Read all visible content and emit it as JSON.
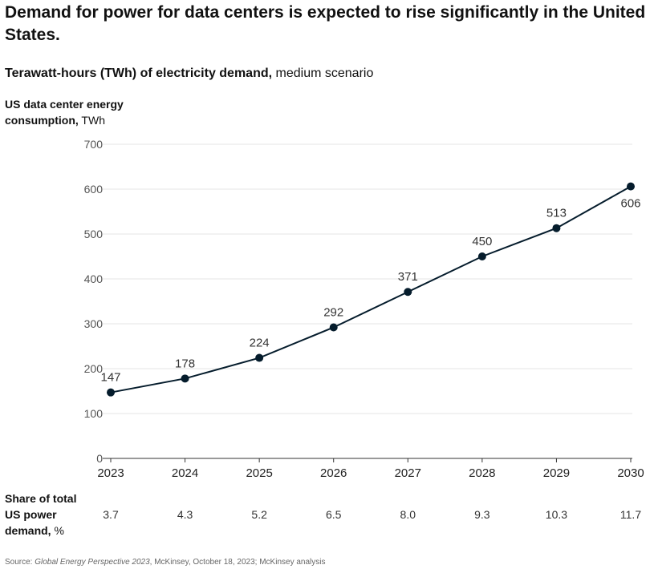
{
  "title": "Demand for power for data centers is expected to rise significantly in the United States.",
  "subtitle": {
    "bold": "Terawatt-hours (TWh) of electricity demand,",
    "normal": "medium scenario"
  },
  "y_axis_label": {
    "bold": "US data center energy consumption,",
    "unit": "TWh"
  },
  "share_row": {
    "label_bold": "Share of total US power demand,",
    "label_unit": "%",
    "values": [
      "3.7",
      "4.3",
      "5.2",
      "6.5",
      "8.0",
      "9.3",
      "10.3",
      "11.7"
    ]
  },
  "source": {
    "prefix": "Source:",
    "italic": "Global Energy Perspective 2023",
    "suffix": ", McKinsey, October 18, 2023; McKinsey analysis"
  },
  "colors": {
    "line": "#051c2c",
    "grid": "#e6e6e6",
    "axis": "#333333",
    "tick_text": "#555555"
  },
  "chart_data": {
    "type": "line",
    "title": "Demand for power for data centers is expected to rise significantly in the United States.",
    "xlabel": "",
    "ylabel": "US data center energy consumption, TWh",
    "ylim": [
      0,
      700
    ],
    "yticks": [
      0,
      100,
      200,
      300,
      400,
      500,
      600,
      700
    ],
    "x": [
      "2023",
      "2024",
      "2025",
      "2026",
      "2027",
      "2028",
      "2029",
      "2030"
    ],
    "series": [
      {
        "name": "US data center energy consumption",
        "values": [
          147,
          178,
          224,
          292,
          371,
          450,
          513,
          606
        ],
        "labels": [
          "147",
          "178",
          "224",
          "292",
          "371",
          "450",
          "513",
          "606"
        ]
      }
    ],
    "grid": true,
    "legend": "none"
  }
}
